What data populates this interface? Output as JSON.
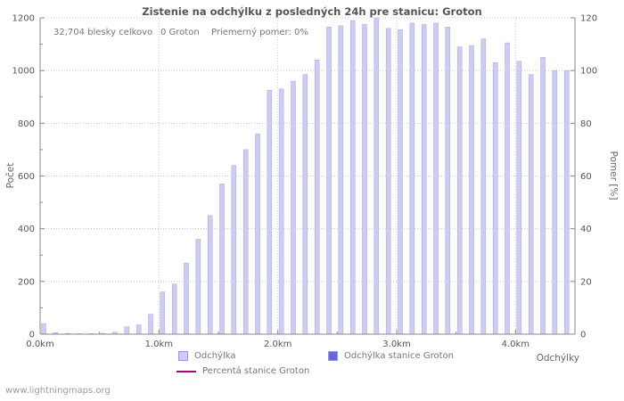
{
  "header": {
    "title": "Zistenie na odchýlku z posledných 24h pre stanicu: Groton",
    "stats": {
      "total": "32,704 blesky celkovo",
      "station": "0 Groton",
      "ratio": "Priemerný pomer: 0%"
    }
  },
  "chart_data": {
    "type": "bar",
    "title": "Zistenie na odchýlku z posledných 24h pre stanicu: Groton",
    "xlabel": "Odchýlky",
    "ylabel_left": "Počet",
    "ylabel_right": "Pomer [%]",
    "x_unit": "km",
    "x_start": 0.0,
    "x_step": 0.1,
    "x_km": [
      0,
      0.1,
      0.2,
      0.3,
      0.4,
      0.5,
      0.6,
      0.7,
      0.8,
      0.9,
      1,
      1.1,
      1.2,
      1.3,
      1.4,
      1.5,
      1.6,
      1.7,
      1.8,
      1.9,
      2,
      2.1,
      2.2,
      2.3,
      2.4,
      2.5,
      2.6,
      2.7,
      2.8,
      2.9,
      3,
      3.1,
      3.2,
      3.3,
      3.4,
      3.5,
      3.6,
      3.7,
      3.8,
      3.9,
      4,
      4.1,
      4.2,
      4.3,
      4.4
    ],
    "x_tick_labels": [
      "0.0km",
      "1.0km",
      "2.0km",
      "3.0km",
      "4.0km"
    ],
    "y_left_ticks": [
      0,
      200,
      400,
      600,
      800,
      1000,
      1200
    ],
    "y_right_ticks": [
      0,
      20,
      40,
      60,
      80,
      100,
      120
    ],
    "ylim_left": [
      0,
      1200
    ],
    "ylim_right": [
      0,
      120
    ],
    "grid": true,
    "legend_position": "bottom",
    "series": [
      {
        "name": "Odchýlka",
        "color": "#cdcdf2",
        "border": "#a5a5dc",
        "values": [
          40,
          6,
          3,
          2,
          2,
          3,
          8,
          28,
          35,
          75,
          160,
          190,
          270,
          360,
          450,
          570,
          640,
          700,
          760,
          925,
          930,
          960,
          985,
          1040,
          1165,
          1170,
          1190,
          1175,
          1200,
          1160,
          1155,
          1180,
          1175,
          1180,
          1165,
          1090,
          1095,
          1120,
          1030,
          1105,
          1035,
          985,
          1050,
          1000,
          1000
        ]
      },
      {
        "name": "Odchýlka stanice Groton",
        "color": "#6666dd",
        "values": [
          0,
          0,
          0,
          0,
          0,
          0,
          0,
          0,
          0,
          0,
          0,
          0,
          0,
          0,
          0,
          0,
          0,
          0,
          0,
          0,
          0,
          0,
          0,
          0,
          0,
          0,
          0,
          0,
          0,
          0,
          0,
          0,
          0,
          0,
          0,
          0,
          0,
          0,
          0,
          0,
          0,
          0,
          0,
          0,
          0
        ]
      },
      {
        "name": "Percentá stanice Groton",
        "type": "line",
        "color": "#aa0077",
        "axis": "right",
        "values": [
          0,
          0,
          0,
          0,
          0,
          0,
          0,
          0,
          0,
          0,
          0,
          0,
          0,
          0,
          0,
          0,
          0,
          0,
          0,
          0,
          0,
          0,
          0,
          0,
          0,
          0,
          0,
          0,
          0,
          0,
          0,
          0,
          0,
          0,
          0,
          0,
          0,
          0,
          0,
          0,
          0,
          0,
          0,
          0,
          0
        ]
      }
    ],
    "legend": [
      {
        "label": "Odchýlka",
        "color": "#cdcdf2",
        "type": "square"
      },
      {
        "label": "Odchýlka stanice Groton",
        "color": "#6666dd",
        "type": "square"
      },
      {
        "label": "Percentá stanice Groton",
        "color": "#aa0077",
        "type": "line"
      }
    ]
  },
  "footer": {
    "watermark": "www.lightningmaps.org"
  }
}
